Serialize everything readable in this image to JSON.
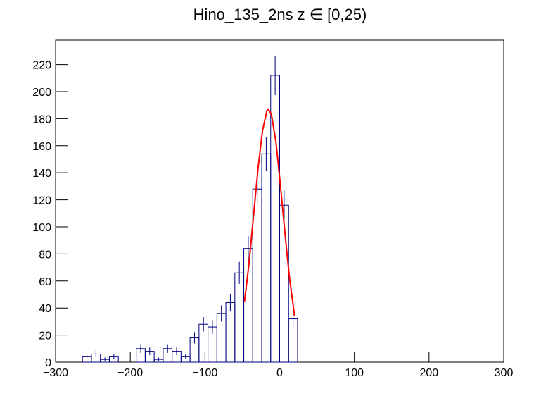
{
  "chart_data": {
    "type": "histogram",
    "title": "Hino_135_2ns z  ∈ [0,25)",
    "bins": [
      -264,
      -252,
      -240,
      -228,
      -216,
      -204,
      -192,
      -180,
      -168,
      -156,
      -144,
      -132,
      -120,
      -108,
      -96,
      -84,
      -72,
      -60,
      -48,
      -36,
      -24,
      -12,
      0,
      12,
      24
    ],
    "values": [
      4,
      6,
      2,
      4,
      0,
      0,
      10,
      8,
      2,
      10,
      8,
      4,
      18,
      28,
      26,
      36,
      44,
      66,
      84,
      128,
      154,
      212,
      116,
      32
    ],
    "errors": [
      2,
      2.4,
      1.4,
      2,
      0,
      0,
      3.2,
      2.8,
      1.4,
      3.2,
      2.8,
      2,
      4.2,
      5.3,
      5.1,
      6,
      6.6,
      8.1,
      9.2,
      11.3,
      12.4,
      14.6,
      10.8,
      5.7
    ],
    "color": "#000080",
    "fit": {
      "color": "#ff0000",
      "x": [
        -47,
        -41,
        -35,
        -29,
        -23,
        -17,
        -15,
        -11,
        -5,
        1,
        7,
        13,
        20
      ],
      "values": [
        45,
        73,
        108,
        143,
        171,
        186,
        187,
        183,
        163,
        131,
        96,
        63,
        34
      ]
    },
    "xlim": [
      -300,
      300
    ],
    "xticks": [
      {
        "value": -300,
        "label": "−300"
      },
      {
        "value": -200,
        "label": "−200"
      },
      {
        "value": -100,
        "label": "−100"
      },
      0,
      100,
      200,
      300
    ],
    "ylim": [
      0,
      238
    ],
    "yticks": [
      0,
      20,
      40,
      60,
      80,
      100,
      120,
      140,
      160,
      180,
      200,
      220
    ]
  }
}
